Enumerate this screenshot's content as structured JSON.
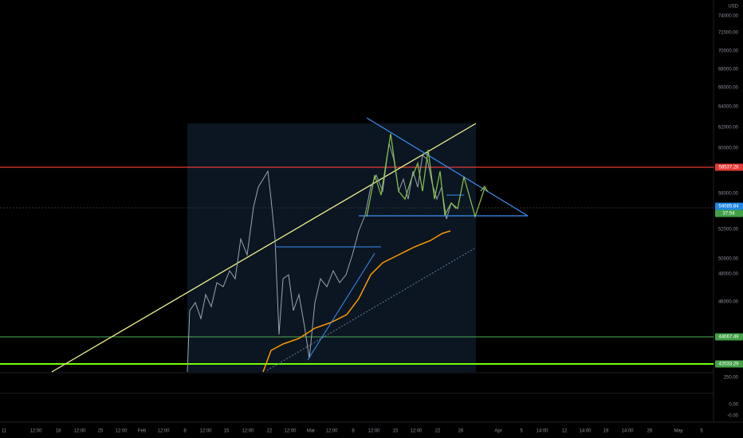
{
  "axis": {
    "currency": "USD",
    "price_labels": [
      "74000.00",
      "72000.00",
      "70000.00",
      "68000.00",
      "66000.00",
      "64000.00",
      "62000.00",
      "60000.00",
      "56000.00",
      "52000.00",
      "50000.00",
      "48000.00",
      "46000.00",
      "250.00"
    ],
    "tags": [
      {
        "label": "58537.28",
        "color": "red"
      },
      {
        "label": "54085.84",
        "color": "blue"
      },
      {
        "label": "37:54",
        "color": "green"
      },
      {
        "label": "44067.49",
        "color": "green"
      },
      {
        "label": "42033.29",
        "color": "green"
      }
    ],
    "lower_pane_labels": [
      "0.00",
      "-0.00"
    ],
    "time_labels": [
      "11",
      "12:00",
      "18",
      "12:00",
      "25",
      "12:00",
      "Feb",
      "12:00",
      "8",
      "12:00",
      "15",
      "12:00",
      "22",
      "12:00",
      "Mar",
      "12:00",
      "8",
      "12:00",
      "15",
      "12:00",
      "22",
      "26",
      "Apr",
      "5",
      "14:00",
      "12",
      "14:00",
      "19",
      "14:00",
      "26",
      "May",
      "5"
    ]
  }
}
